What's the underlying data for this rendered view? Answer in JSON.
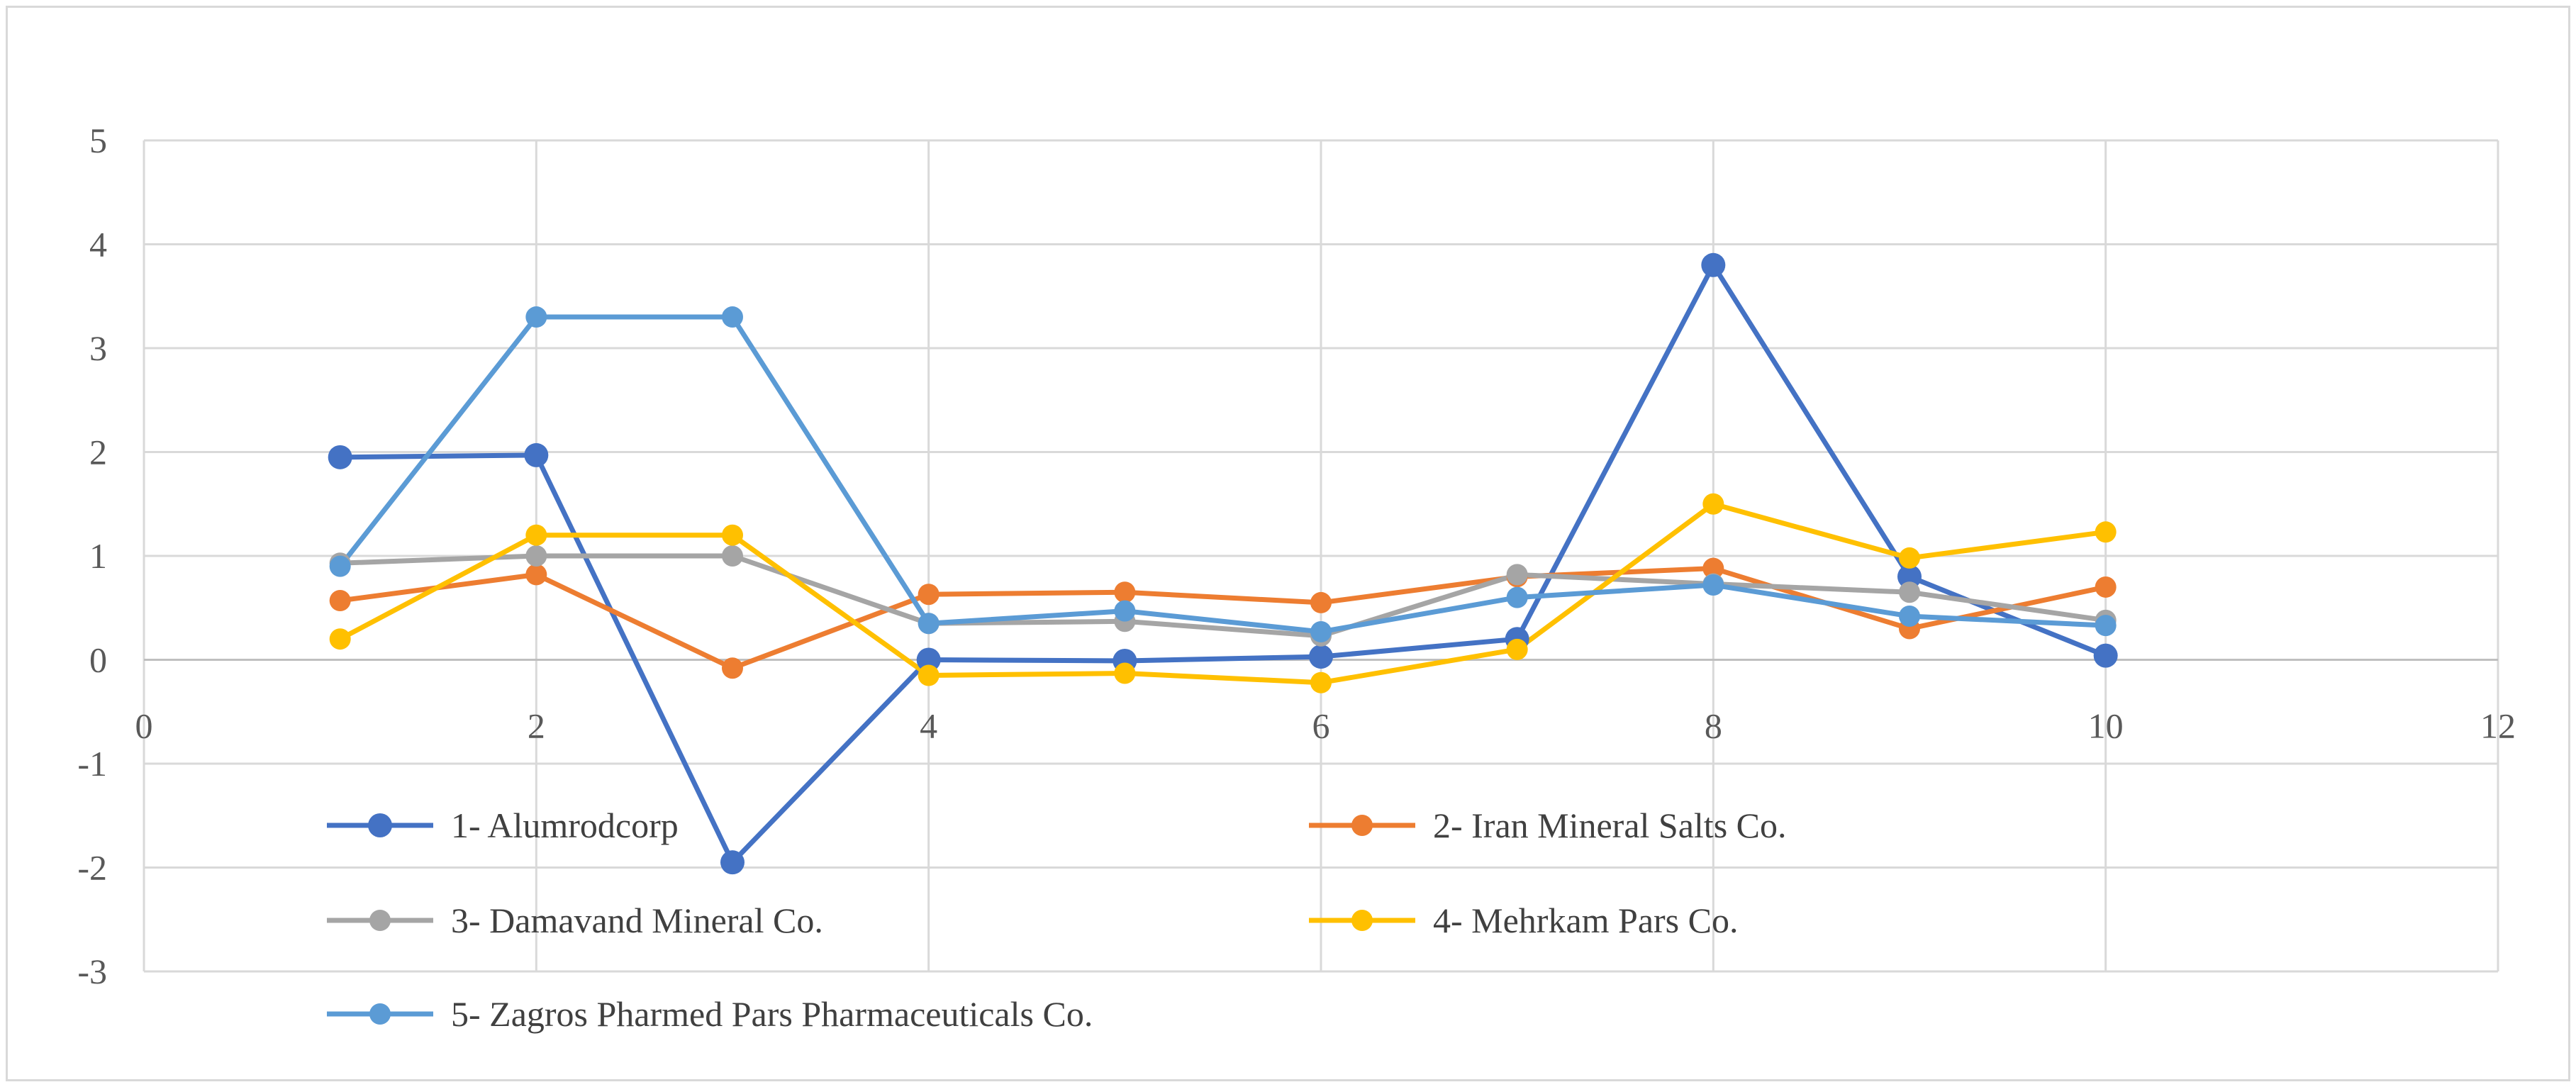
{
  "chart_data": {
    "type": "line",
    "title": "",
    "xlabel": "",
    "ylabel": "",
    "xlim": [
      0,
      12
    ],
    "ylim": [
      -3,
      5
    ],
    "xticks": [
      0,
      2,
      4,
      6,
      8,
      10,
      12
    ],
    "yticks": [
      -3,
      -2,
      -1,
      0,
      1,
      2,
      3,
      4,
      5
    ],
    "x_tick_labels": [
      "0",
      "2",
      "4",
      "6",
      "8",
      "10",
      "12"
    ],
    "y_tick_labels": [
      "-3",
      "-2",
      "-1",
      "0",
      "1",
      "2",
      "3",
      "4",
      "5"
    ],
    "grid": true,
    "legend_position": "inside-bottom",
    "x": [
      1,
      2,
      3,
      4,
      5,
      6,
      7,
      8,
      9,
      10
    ],
    "series": [
      {
        "name": "1- Alumrodcorp",
        "color": "#4472c4",
        "marker": "large",
        "values": [
          1.95,
          1.97,
          -1.95,
          0.0,
          -0.01,
          0.03,
          0.2,
          3.8,
          0.8,
          0.04
        ]
      },
      {
        "name": "2- Iran Mineral Salts Co.",
        "color": "#ed7d31",
        "marker": "small",
        "values": [
          0.57,
          0.82,
          -0.08,
          0.63,
          0.65,
          0.55,
          0.8,
          0.88,
          0.3,
          0.7
        ]
      },
      {
        "name": "3- Damavand Mineral Co.",
        "color": "#a5a5a5",
        "marker": "small",
        "values": [
          0.93,
          1.0,
          1.0,
          0.35,
          0.37,
          0.23,
          0.82,
          0.73,
          0.65,
          0.38
        ]
      },
      {
        "name": "4- Mehrkam Pars Co.",
        "color": "#ffc000",
        "marker": "small",
        "values": [
          0.2,
          1.2,
          1.2,
          -0.15,
          -0.13,
          -0.22,
          0.1,
          1.5,
          0.98,
          1.23
        ]
      },
      {
        "name": "5- Zagros Pharmed Pars Pharmaceuticals Co.",
        "color": "#5b9bd5",
        "marker": "small",
        "values": [
          0.9,
          3.3,
          3.3,
          0.35,
          0.47,
          0.27,
          0.6,
          0.72,
          0.42,
          0.33
        ]
      }
    ]
  }
}
